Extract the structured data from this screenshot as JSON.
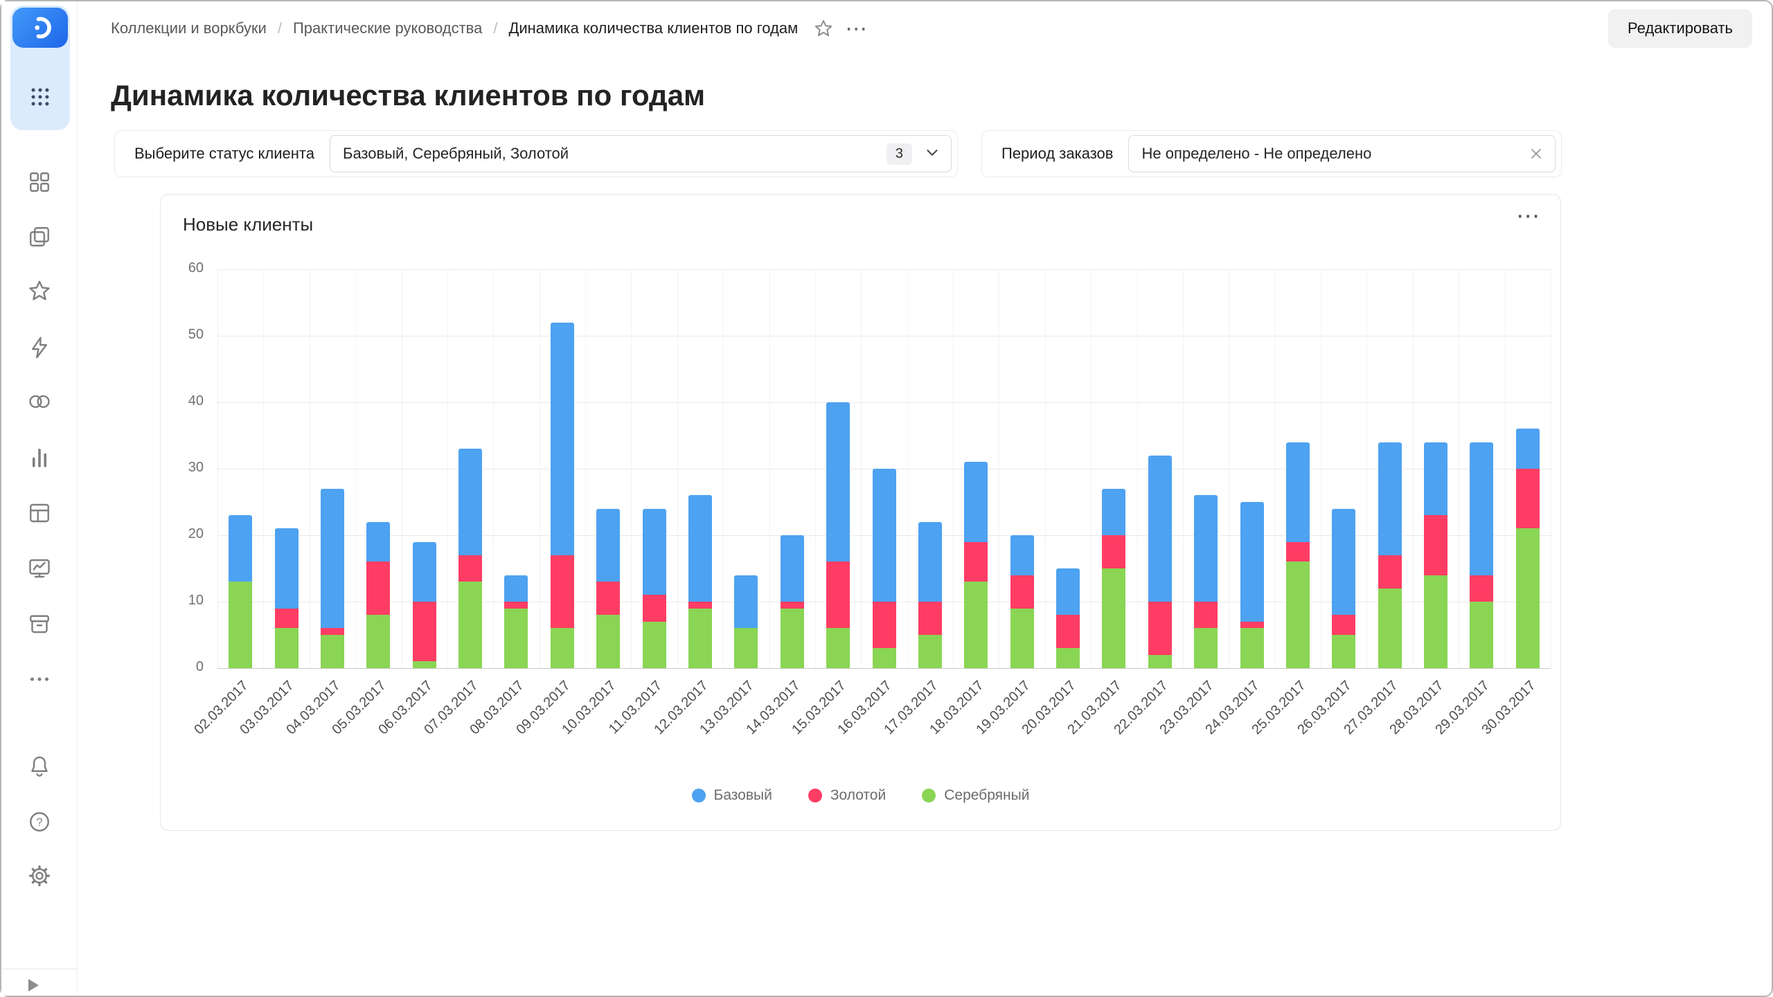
{
  "header": {
    "breadcrumbs": [
      "Коллекции и воркбуки",
      "Практические руководства",
      "Динамика количества клиентов по годам"
    ],
    "separator": "/",
    "edit_button": "Редактировать"
  },
  "page_title": "Динамика количества клиентов по годам",
  "filters": {
    "status_label": "Выберите статус клиента",
    "status_value": "Базовый, Серебряный, Золотой",
    "status_count": "3",
    "period_label": "Период заказов",
    "period_value": "Не определено - Не определено"
  },
  "chart": {
    "title": "Новые клиенты"
  },
  "chart_data": {
    "type": "bar",
    "stacked": true,
    "title": "Новые клиенты",
    "categories": [
      "02.03.2017",
      "03.03.2017",
      "04.03.2017",
      "05.03.2017",
      "06.03.2017",
      "07.03.2017",
      "08.03.2017",
      "09.03.2017",
      "10.03.2017",
      "11.03.2017",
      "12.03.2017",
      "13.03.2017",
      "14.03.2017",
      "15.03.2017",
      "16.03.2017",
      "17.03.2017",
      "18.03.2017",
      "19.03.2017",
      "20.03.2017",
      "21.03.2017",
      "22.03.2017",
      "23.03.2017",
      "24.03.2017",
      "25.03.2017",
      "26.03.2017",
      "27.03.2017",
      "28.03.2017",
      "29.03.2017",
      "30.03.2017"
    ],
    "series": [
      {
        "name": "Базовый",
        "color": "#4DA2F1",
        "values": [
          10,
          12,
          21,
          6,
          9,
          16,
          4,
          35,
          11,
          13,
          16,
          8,
          10,
          24,
          20,
          12,
          12,
          6,
          7,
          7,
          22,
          16,
          18,
          15,
          16,
          17,
          11,
          20,
          6
        ]
      },
      {
        "name": "Золотой",
        "color": "#FF3D64",
        "values": [
          0,
          3,
          1,
          8,
          9,
          4,
          1,
          11,
          5,
          4,
          1,
          0,
          1,
          10,
          7,
          5,
          6,
          5,
          5,
          5,
          8,
          4,
          1,
          3,
          3,
          5,
          9,
          4,
          9
        ]
      },
      {
        "name": "Серебряный",
        "color": "#8AD554",
        "values": [
          13,
          6,
          5,
          8,
          1,
          13,
          9,
          6,
          8,
          7,
          9,
          6,
          9,
          6,
          3,
          5,
          13,
          9,
          3,
          15,
          2,
          6,
          6,
          16,
          5,
          12,
          14,
          10,
          21
        ]
      }
    ],
    "stack_order_bottom_to_top": [
      "Серебряный",
      "Золотой",
      "Базовый"
    ],
    "ylim": [
      0,
      60
    ],
    "yticks": [
      0,
      10,
      20,
      30,
      40,
      50,
      60
    ],
    "legend_position": "bottom",
    "grid": true
  },
  "icons": {
    "more": "⋯",
    "sidebar_items": [
      "datalens-logo",
      "apps-grid",
      "collections",
      "workbooks",
      "favorites",
      "quick-actions",
      "services",
      "charts",
      "datasets",
      "dashboards",
      "storage",
      "more",
      "notifications",
      "help",
      "settings",
      "collapse"
    ]
  }
}
